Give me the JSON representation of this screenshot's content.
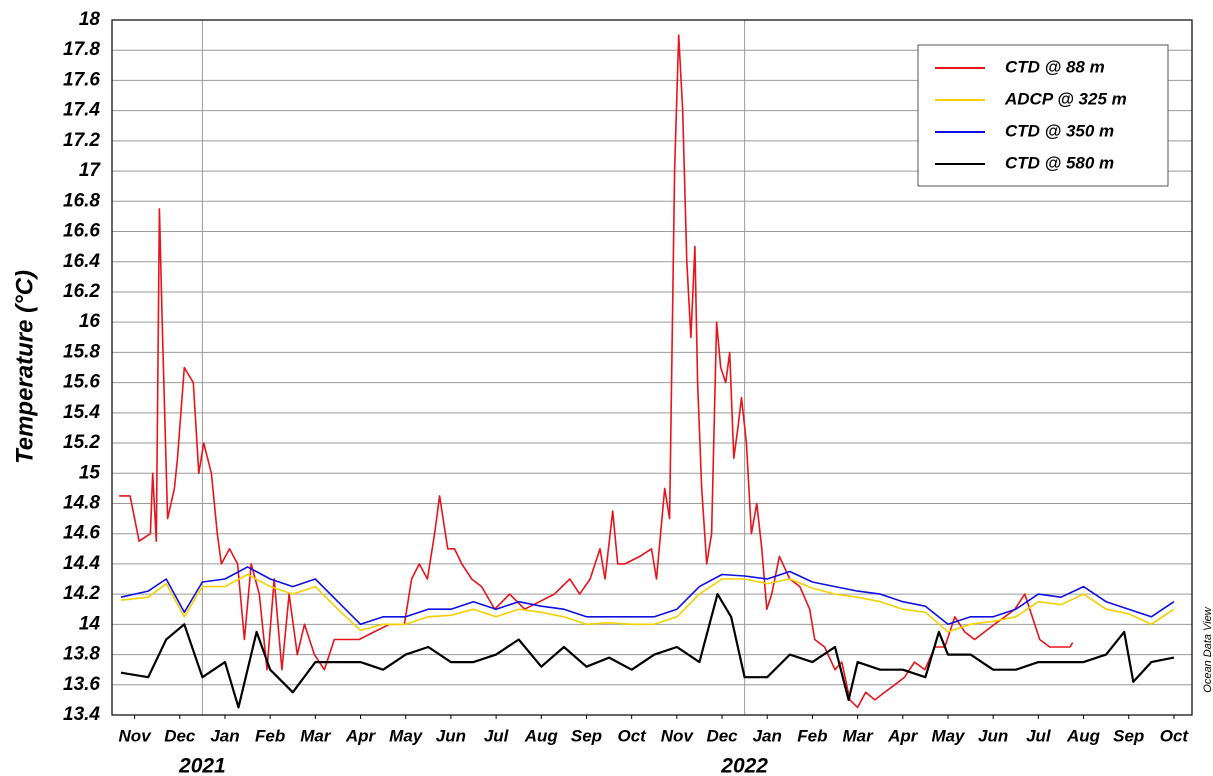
{
  "chart_data": {
    "type": "line",
    "y_label": "Temperature (°C)",
    "watermark": "Ocean Data View",
    "xlim": [
      0,
      23.9
    ],
    "xticks": [
      {
        "value": 0.5,
        "label": "Nov"
      },
      {
        "value": 1.5,
        "label": "Dec"
      },
      {
        "value": 2.5,
        "label": "Jan"
      },
      {
        "value": 3.5,
        "label": "Feb"
      },
      {
        "value": 4.5,
        "label": "Mar"
      },
      {
        "value": 5.5,
        "label": "Apr"
      },
      {
        "value": 6.5,
        "label": "May"
      },
      {
        "value": 7.5,
        "label": "Jun"
      },
      {
        "value": 8.5,
        "label": "Jul"
      },
      {
        "value": 9.5,
        "label": "Aug"
      },
      {
        "value": 10.5,
        "label": "Sep"
      },
      {
        "value": 11.5,
        "label": "Oct"
      },
      {
        "value": 12.5,
        "label": "Nov"
      },
      {
        "value": 13.5,
        "label": "Dec"
      },
      {
        "value": 14.5,
        "label": "Jan"
      },
      {
        "value": 15.5,
        "label": "Feb"
      },
      {
        "value": 16.5,
        "label": "Mar"
      },
      {
        "value": 17.5,
        "label": "Apr"
      },
      {
        "value": 18.5,
        "label": "May"
      },
      {
        "value": 19.5,
        "label": "Jun"
      },
      {
        "value": 20.5,
        "label": "Jul"
      },
      {
        "value": 21.5,
        "label": "Aug"
      },
      {
        "value": 22.5,
        "label": "Sep"
      },
      {
        "value": 23.5,
        "label": "Oct"
      }
    ],
    "year_labels": [
      {
        "value": 2,
        "label": "2021"
      },
      {
        "value": 14,
        "label": "2022"
      }
    ],
    "ylim": [
      13.4,
      18
    ],
    "yticks": [
      13.4,
      13.6,
      13.8,
      14,
      14.2,
      14.4,
      14.6,
      14.8,
      15,
      15.2,
      15.4,
      15.6,
      15.8,
      16,
      16.2,
      16.4,
      16.6,
      16.8,
      17,
      17.2,
      17.4,
      17.6,
      17.8,
      18
    ],
    "grid": true,
    "legend": "upper right",
    "series": [
      {
        "name": "CTD @ 88 m",
        "color": "#e8141c",
        "x": [
          0.16,
          0.4,
          0.6,
          0.85,
          0.9,
          0.98,
          1.05,
          1.12,
          1.23,
          1.38,
          1.45,
          1.6,
          1.7,
          1.8,
          1.92,
          2.03,
          2.2,
          2.33,
          2.42,
          2.6,
          2.78,
          2.93,
          3.08,
          3.26,
          3.43,
          3.59,
          3.76,
          3.92,
          4.1,
          4.26,
          4.48,
          4.7,
          4.92,
          5.14,
          5.47,
          5.8,
          6.14,
          6.47,
          6.63,
          6.8,
          6.98,
          7.14,
          7.25,
          7.43,
          7.58,
          7.74,
          7.96,
          8.18,
          8.47,
          8.8,
          9.13,
          9.46,
          9.79,
          10.13,
          10.35,
          10.58,
          10.8,
          10.91,
          11.08,
          11.19,
          11.35,
          11.68,
          11.94,
          12.05,
          12.23,
          12.34,
          12.45,
          12.54,
          12.63,
          12.72,
          12.81,
          12.9,
          12.96,
          13.05,
          13.16,
          13.27,
          13.38,
          13.47,
          13.58,
          13.67,
          13.76,
          13.85,
          13.93,
          14.04,
          14.15,
          14.27,
          14.38,
          14.49,
          14.6,
          14.77,
          15.0,
          15.22,
          15.44,
          15.55,
          15.77,
          16.0,
          16.15,
          16.33,
          16.5,
          16.68,
          16.88,
          17.1,
          17.32,
          17.54,
          17.76,
          17.99,
          18.21,
          18.43,
          18.65,
          18.87,
          19.09,
          19.31,
          19.53,
          19.76,
          19.98,
          20.2,
          20.31,
          20.53,
          20.75,
          20.98,
          21.2,
          21.26
        ],
        "values": [
          14.85,
          14.85,
          14.55,
          14.6,
          15.0,
          14.55,
          16.75,
          15.9,
          14.7,
          14.9,
          15.1,
          15.7,
          15.65,
          15.6,
          15.0,
          15.2,
          15.0,
          14.6,
          14.4,
          14.5,
          14.4,
          13.9,
          14.4,
          14.2,
          13.7,
          14.3,
          13.7,
          14.2,
          13.8,
          14.0,
          13.8,
          13.7,
          13.9,
          13.9,
          13.9,
          13.95,
          14.0,
          14.0,
          14.3,
          14.4,
          14.3,
          14.6,
          14.85,
          14.5,
          14.5,
          14.4,
          14.3,
          14.25,
          14.1,
          14.2,
          14.1,
          14.15,
          14.2,
          14.3,
          14.2,
          14.3,
          14.5,
          14.3,
          14.75,
          14.4,
          14.4,
          14.45,
          14.5,
          14.3,
          14.9,
          14.7,
          17.0,
          17.9,
          17.4,
          16.4,
          15.9,
          16.5,
          15.6,
          14.9,
          14.4,
          14.6,
          16.0,
          15.7,
          15.6,
          15.8,
          15.1,
          15.3,
          15.5,
          15.2,
          14.6,
          14.8,
          14.5,
          14.1,
          14.2,
          14.45,
          14.3,
          14.25,
          14.1,
          13.9,
          13.85,
          13.7,
          13.75,
          13.5,
          13.45,
          13.55,
          13.5,
          13.55,
          13.6,
          13.65,
          13.75,
          13.7,
          13.85,
          13.85,
          14.05,
          13.95,
          13.9,
          13.95,
          14.0,
          14.05,
          14.1,
          14.2,
          14.1,
          13.9,
          13.85,
          13.85,
          13.85,
          13.88
        ]
      },
      {
        "name": "ADCP @ 325 m",
        "color": "#f5d000",
        "x": [
          0.2,
          0.8,
          1.2,
          1.6,
          2.0,
          2.5,
          3.0,
          3.5,
          4.0,
          4.5,
          5.0,
          5.5,
          6.0,
          6.5,
          7.0,
          7.5,
          8.0,
          8.5,
          9.0,
          9.5,
          10.0,
          10.5,
          11.0,
          11.5,
          12.0,
          12.5,
          13.0,
          13.5,
          14.0,
          14.5,
          15.0,
          15.5,
          16.0,
          16.5,
          17.0,
          17.5,
          18.0,
          18.5,
          19.0,
          19.5,
          20.0,
          20.5,
          21.0,
          21.5,
          22.0,
          22.5,
          23.0,
          23.5
        ],
        "values": [
          14.16,
          14.18,
          14.27,
          14.05,
          14.25,
          14.25,
          14.33,
          14.25,
          14.2,
          14.25,
          14.1,
          13.96,
          14.0,
          14.0,
          14.05,
          14.06,
          14.1,
          14.05,
          14.1,
          14.08,
          14.05,
          14.0,
          14.01,
          14.0,
          14.0,
          14.05,
          14.2,
          14.3,
          14.3,
          14.27,
          14.3,
          14.24,
          14.2,
          14.18,
          14.15,
          14.1,
          14.08,
          13.95,
          14.0,
          14.02,
          14.05,
          14.15,
          14.13,
          14.2,
          14.1,
          14.07,
          14.0,
          14.1
        ]
      },
      {
        "name": "CTD @ 350 m",
        "color": "#1010e0",
        "x": [
          0.2,
          0.8,
          1.2,
          1.6,
          2.0,
          2.5,
          3.0,
          3.5,
          4.0,
          4.5,
          5.0,
          5.5,
          6.0,
          6.5,
          7.0,
          7.5,
          8.0,
          8.5,
          9.0,
          9.5,
          10.0,
          10.5,
          11.0,
          11.5,
          12.0,
          12.5,
          13.0,
          13.5,
          14.0,
          14.5,
          15.0,
          15.5,
          16.0,
          16.5,
          17.0,
          17.5,
          18.0,
          18.5,
          19.0,
          19.5,
          20.0,
          20.5,
          21.0,
          21.5,
          22.0,
          22.5,
          23.0,
          23.5
        ],
        "values": [
          14.18,
          14.22,
          14.3,
          14.08,
          14.28,
          14.3,
          14.38,
          14.3,
          14.25,
          14.3,
          14.15,
          14.0,
          14.05,
          14.05,
          14.1,
          14.1,
          14.15,
          14.1,
          14.15,
          14.12,
          14.1,
          14.05,
          14.05,
          14.05,
          14.05,
          14.1,
          14.25,
          14.33,
          14.32,
          14.3,
          14.35,
          14.28,
          14.25,
          14.22,
          14.2,
          14.15,
          14.12,
          14.0,
          14.05,
          14.05,
          14.1,
          14.2,
          14.18,
          14.25,
          14.15,
          14.1,
          14.05,
          14.15
        ]
      },
      {
        "name": "CTD @ 580 m",
        "color": "#000000",
        "x": [
          0.2,
          0.8,
          1.2,
          1.6,
          2.0,
          2.5,
          2.8,
          3.2,
          3.5,
          4.0,
          4.5,
          5.0,
          5.5,
          6.0,
          6.5,
          7.0,
          7.5,
          8.0,
          8.5,
          9.0,
          9.5,
          10.0,
          10.5,
          11.0,
          11.5,
          12.0,
          12.5,
          13.0,
          13.4,
          13.7,
          14.0,
          14.5,
          15.0,
          15.5,
          16.0,
          16.3,
          16.5,
          17.0,
          17.5,
          18.0,
          18.3,
          18.5,
          19.0,
          19.5,
          20.0,
          20.5,
          21.0,
          21.5,
          22.0,
          22.4,
          22.6,
          23.0,
          23.5
        ],
        "values": [
          13.68,
          13.65,
          13.9,
          14.0,
          13.65,
          13.75,
          13.45,
          13.95,
          13.7,
          13.55,
          13.75,
          13.75,
          13.75,
          13.7,
          13.8,
          13.85,
          13.75,
          13.75,
          13.8,
          13.9,
          13.72,
          13.85,
          13.72,
          13.78,
          13.7,
          13.8,
          13.85,
          13.75,
          14.2,
          14.05,
          13.65,
          13.65,
          13.8,
          13.75,
          13.85,
          13.5,
          13.75,
          13.7,
          13.7,
          13.65,
          13.95,
          13.8,
          13.8,
          13.7,
          13.7,
          13.75,
          13.75,
          13.75,
          13.8,
          13.95,
          13.62,
          13.75,
          13.78
        ]
      }
    ]
  }
}
